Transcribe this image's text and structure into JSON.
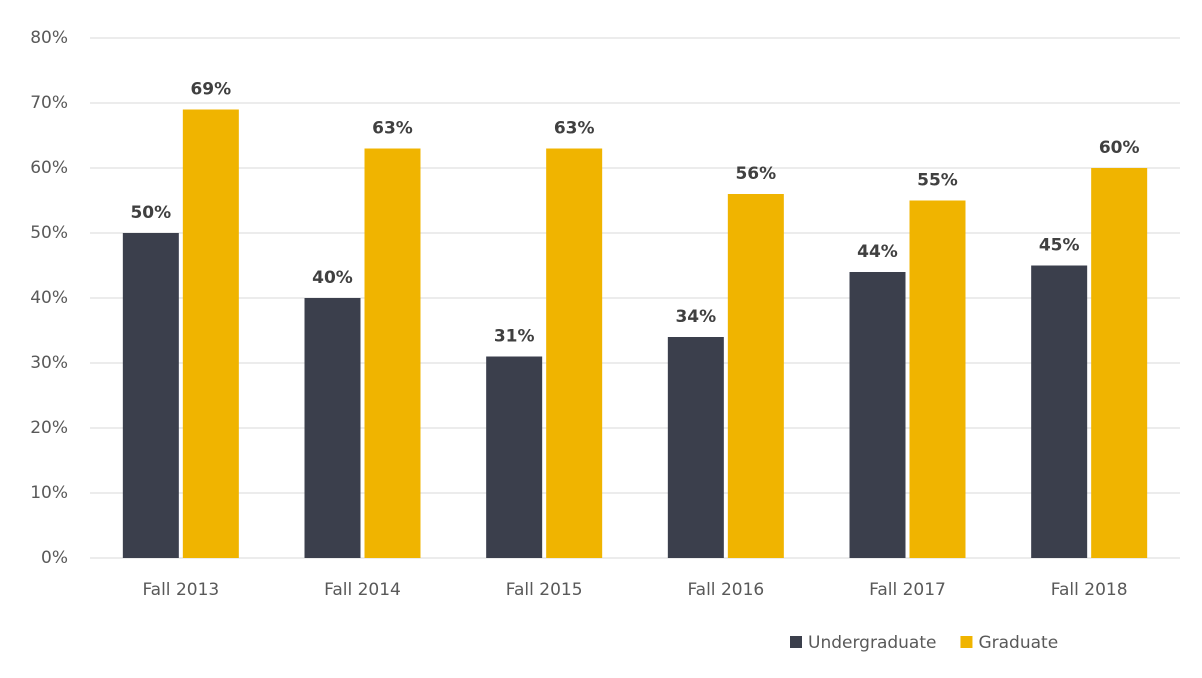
{
  "chart_data": {
    "type": "bar",
    "categories": [
      "Fall 2013",
      "Fall 2014",
      "Fall 2015",
      "Fall 2016",
      "Fall 2017",
      "Fall 2018"
    ],
    "series": [
      {
        "name": "Undergraduate",
        "color": "#3b3f4c",
        "values": [
          50,
          40,
          31,
          34,
          44,
          45
        ],
        "value_labels": [
          "50%",
          "40%",
          "31%",
          "34%",
          "44%",
          "45%"
        ]
      },
      {
        "name": "Graduate",
        "color": "#f0b400",
        "values": [
          69,
          63,
          63,
          56,
          55,
          60
        ],
        "value_labels": [
          "69%",
          "63%",
          "63%",
          "56%",
          "55%",
          "60%"
        ]
      }
    ],
    "ylim": [
      0,
      80
    ],
    "yticks": [
      {
        "value": 0,
        "label": "0%"
      },
      {
        "value": 10,
        "label": "10%"
      },
      {
        "value": 20,
        "label": "20%"
      },
      {
        "value": 30,
        "label": "30%"
      },
      {
        "value": 40,
        "label": "40%"
      },
      {
        "value": 50,
        "label": "50%"
      },
      {
        "value": 60,
        "label": "60%"
      },
      {
        "value": 70,
        "label": "70%"
      },
      {
        "value": 80,
        "label": "80%"
      }
    ],
    "grid": true,
    "legend": "bottom"
  }
}
